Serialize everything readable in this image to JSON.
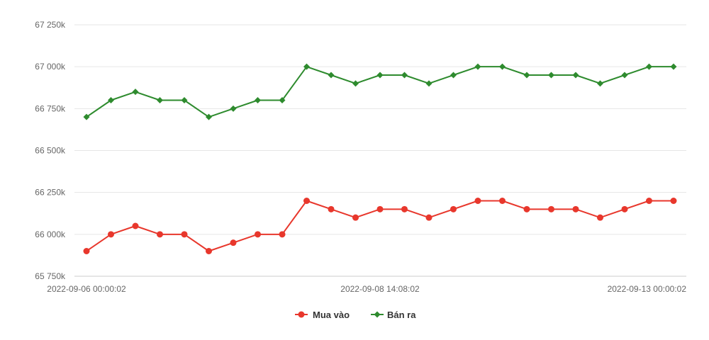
{
  "chart_data": {
    "type": "line",
    "x_tick_labels": [
      "2022-09-06 00:00:02",
      "2022-09-08 14:08:02",
      "2022-09-13 00:00:02"
    ],
    "x_tick_indices": [
      0,
      12,
      24
    ],
    "y_tick_labels": [
      "65 750k",
      "66 000k",
      "66 250k",
      "66 500k",
      "66 750k",
      "67 000k",
      "67 250k"
    ],
    "y_ticks": [
      65750,
      66000,
      66250,
      66500,
      66750,
      67000,
      67250
    ],
    "ylim": [
      65750,
      67250
    ],
    "grid": true,
    "legend_position": "bottom-center",
    "series": [
      {
        "name": "Mua vào",
        "color": "#e8372c",
        "marker": "circle",
        "values": [
          65900,
          66000,
          66050,
          66000,
          66000,
          65900,
          65950,
          66000,
          66000,
          66200,
          66150,
          66100,
          66150,
          66150,
          66100,
          66150,
          66200,
          66200,
          66150,
          66150,
          66150,
          66100,
          66150,
          66200,
          66200
        ]
      },
      {
        "name": "Bán ra",
        "color": "#2e8b2e",
        "marker": "diamond",
        "values": [
          66700,
          66800,
          66850,
          66800,
          66800,
          66700,
          66750,
          66800,
          66800,
          67000,
          66950,
          66900,
          66950,
          66950,
          66900,
          66950,
          67000,
          67000,
          66950,
          66950,
          66950,
          66900,
          66950,
          67000,
          67000
        ]
      }
    ]
  }
}
